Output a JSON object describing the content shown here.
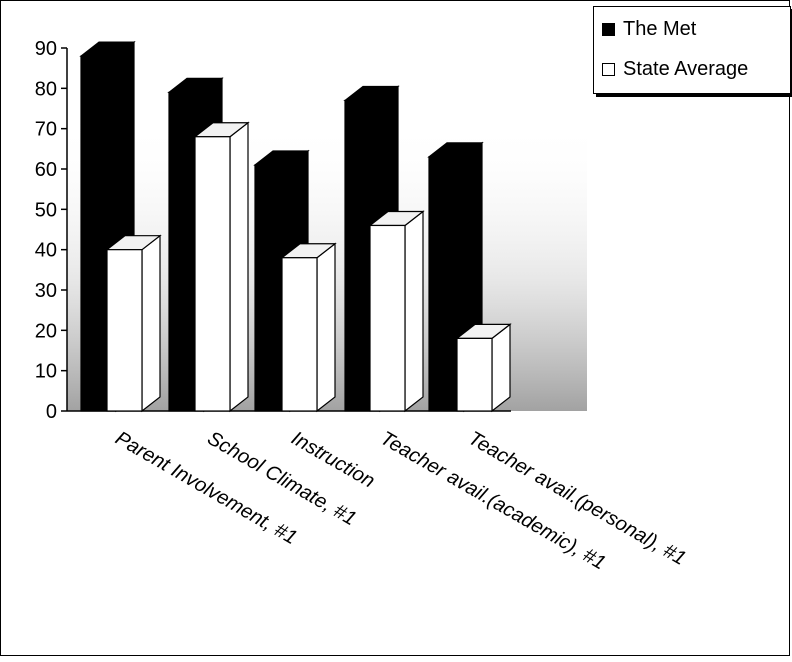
{
  "chart_data": {
    "type": "bar",
    "title": "",
    "xlabel": "",
    "ylabel": "",
    "ylim": [
      0,
      90
    ],
    "yticks": [
      "0",
      "10",
      "20",
      "30",
      "40",
      "50",
      "60",
      "70",
      "80",
      "90"
    ],
    "categories": [
      "Parent Involvement, #1",
      "School Climate, #1",
      "Instruction",
      "Teacher avail.(academic), #1",
      "Teacher avail.(personal), #1"
    ],
    "series": [
      {
        "name": "The Met",
        "color": "#000000",
        "values": [
          88,
          79,
          61,
          77,
          63
        ]
      },
      {
        "name": "State Average",
        "color": "#ffffff",
        "values": [
          40,
          68,
          38,
          46,
          18
        ]
      }
    ],
    "legend_position": "top-right",
    "grid": false,
    "style": "3d-bars"
  }
}
